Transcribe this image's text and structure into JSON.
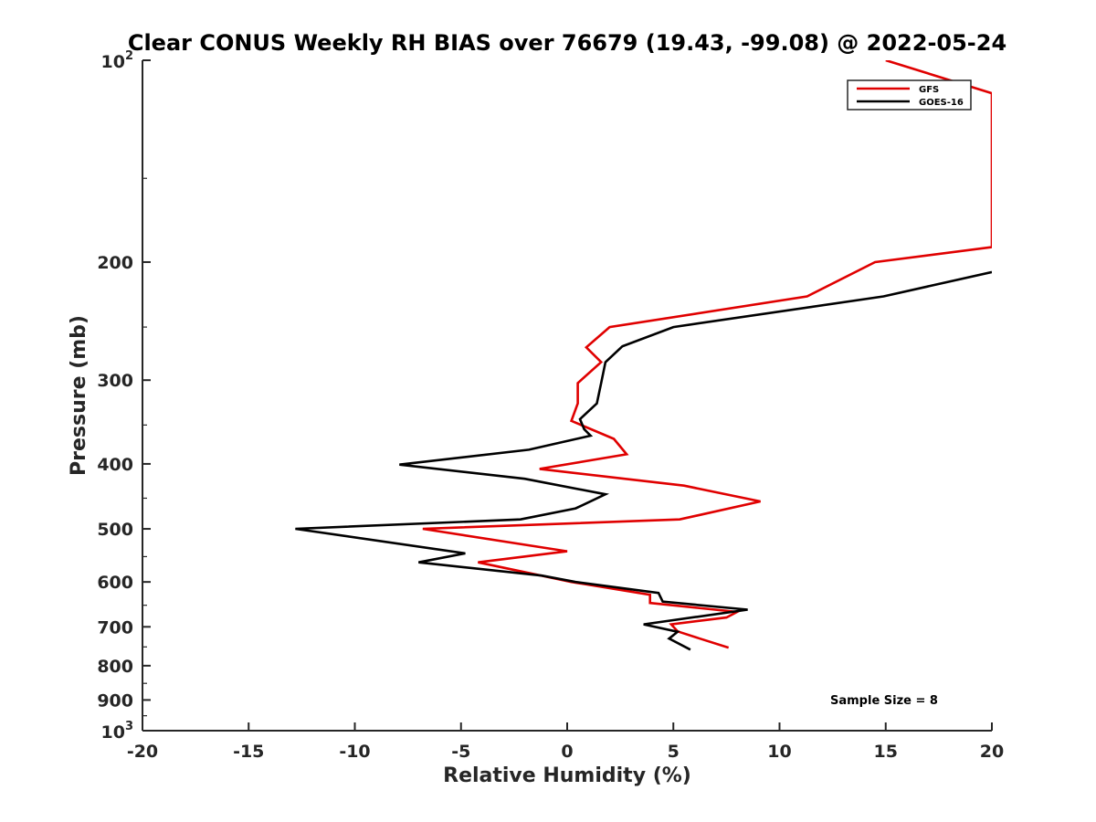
{
  "chart_data": {
    "type": "line",
    "title": "Clear CONUS Weekly RH BIAS over 76679 (19.43, -99.08) @ 2022-05-24",
    "xlabel": "Relative Humidity (%)",
    "ylabel": "Pressure (mb)",
    "xlim": [
      -20,
      20
    ],
    "ylim": [
      100,
      1000
    ],
    "y_scale": "log",
    "y_reversed": true,
    "grid": false,
    "legend_position": "top-right",
    "x_ticks": [
      "-20",
      "-15",
      "-10",
      "-5",
      "0",
      "5",
      "10",
      "15",
      "20"
    ],
    "y_ticks": [
      {
        "value": 100,
        "base": "10",
        "exp": "2"
      },
      {
        "value": 200,
        "label": "200"
      },
      {
        "value": 300,
        "label": "300"
      },
      {
        "value": 400,
        "label": "400"
      },
      {
        "value": 500,
        "label": "500"
      },
      {
        "value": 600,
        "label": "600"
      },
      {
        "value": 700,
        "label": "700"
      },
      {
        "value": 800,
        "label": "800"
      },
      {
        "value": 900,
        "label": "900"
      },
      {
        "value": 1000,
        "base": "10",
        "exp": "3"
      }
    ],
    "series": [
      {
        "name": "GFS",
        "color": "#e00000",
        "points": [
          [
            15.0,
            100
          ],
          [
            20.0,
            112
          ],
          [
            20.0,
            190
          ],
          [
            14.5,
            200
          ],
          [
            11.3,
            225
          ],
          [
            2.0,
            250
          ],
          [
            0.9,
            268
          ],
          [
            1.6,
            282
          ],
          [
            0.5,
            303
          ],
          [
            0.5,
            325
          ],
          [
            0.2,
            345
          ],
          [
            2.2,
            367
          ],
          [
            2.8,
            387
          ],
          [
            -1.3,
            407
          ],
          [
            5.5,
            431
          ],
          [
            9.1,
            455
          ],
          [
            5.3,
            484
          ],
          [
            -6.8,
            500
          ],
          [
            0.0,
            540
          ],
          [
            -4.2,
            561
          ],
          [
            0.2,
            600
          ],
          [
            3.9,
            627
          ],
          [
            3.9,
            645
          ],
          [
            8.0,
            665
          ],
          [
            7.5,
            678
          ],
          [
            4.9,
            694
          ],
          [
            5.2,
            711
          ],
          [
            6.2,
            728
          ],
          [
            7.6,
            752
          ]
        ]
      },
      {
        "name": "GOES-16",
        "color": "#000000",
        "points": [
          [
            20.0,
            207
          ],
          [
            14.9,
            225
          ],
          [
            5.0,
            250
          ],
          [
            2.6,
            267
          ],
          [
            1.8,
            282
          ],
          [
            1.6,
            303
          ],
          [
            1.4,
            325
          ],
          [
            0.6,
            343
          ],
          [
            0.8,
            355
          ],
          [
            1.1,
            363
          ],
          [
            -1.8,
            381
          ],
          [
            -7.9,
            401
          ],
          [
            -2.0,
            421
          ],
          [
            1.8,
            444
          ],
          [
            0.4,
            466
          ],
          [
            -2.2,
            484
          ],
          [
            -12.8,
            500
          ],
          [
            -4.8,
            544
          ],
          [
            -7.0,
            561
          ],
          [
            -1.2,
            587
          ],
          [
            0.4,
            600
          ],
          [
            4.3,
            623
          ],
          [
            4.5,
            642
          ],
          [
            8.5,
            660
          ],
          [
            3.6,
            694
          ],
          [
            5.2,
            712
          ],
          [
            4.8,
            729
          ],
          [
            5.8,
            757
          ]
        ]
      }
    ],
    "annotation": "Sample Size = 8"
  }
}
